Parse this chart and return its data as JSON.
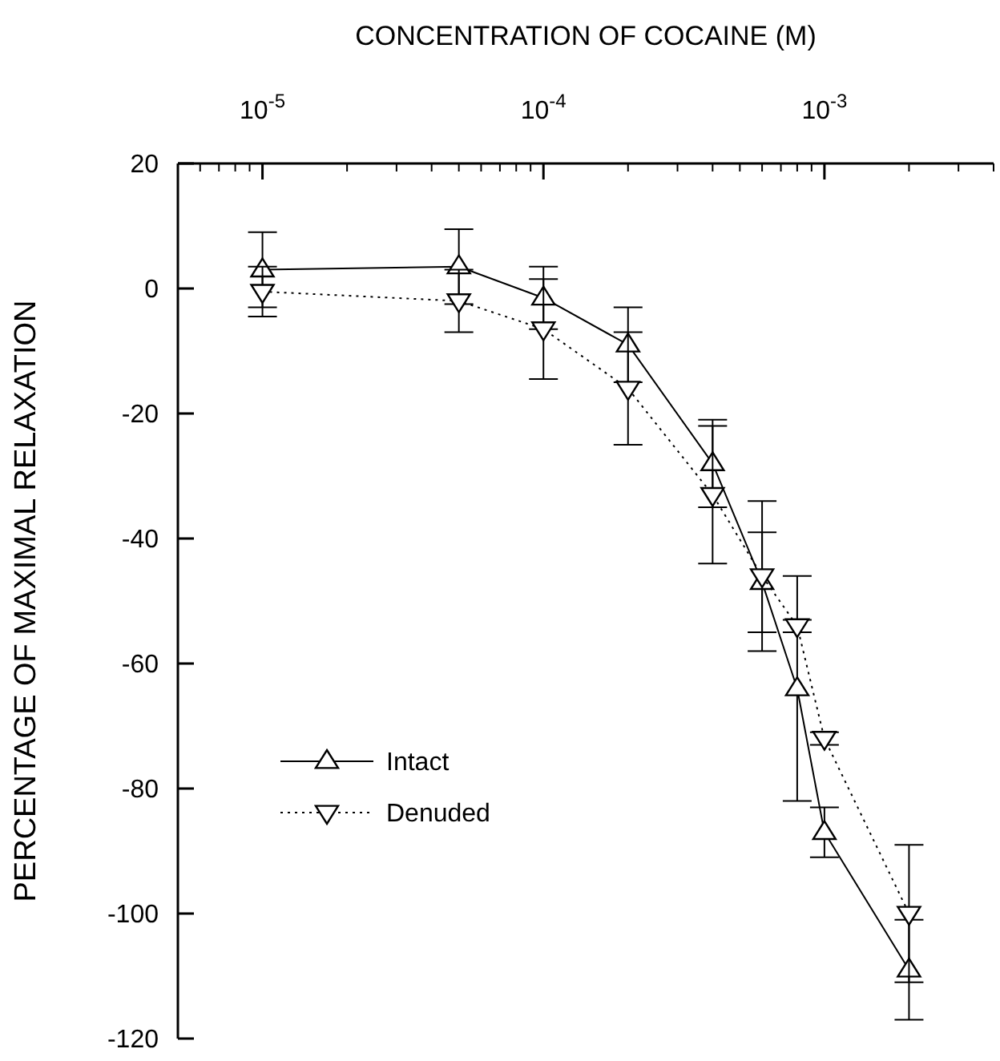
{
  "chart_data": {
    "type": "line",
    "xlabel": "CONCENTRATION OF COCAINE (M)",
    "ylabel": "PERCENTAGE OF MAXIMAL RELAXATION",
    "log": "x",
    "xlim": [
      5e-06,
      0.004
    ],
    "xticks": [
      {
        "value": 1e-05,
        "label": "10$^{-5}$"
      },
      {
        "value": 0.0001,
        "label": "10$^{-4}$"
      },
      {
        "value": 0.001,
        "label": "10$^{-3}$"
      }
    ],
    "ylim": [
      -120,
      20
    ],
    "yticks": [
      -120,
      -100,
      -80,
      -60,
      -40,
      -20,
      0,
      20
    ],
    "grid": false,
    "legend": "left",
    "x": [
      1e-05,
      5e-05,
      0.0001,
      0.0002,
      0.0004,
      0.0006,
      0.0008,
      0.001,
      0.002
    ],
    "series": [
      {
        "name": "Intact",
        "color": "#000000",
        "marker": "triangle",
        "line_style": "solid",
        "values": [
          3,
          3.5,
          -1.5,
          -9,
          -28,
          -47,
          -64,
          -87,
          -109
        ],
        "errors": [
          6,
          6,
          5,
          6,
          7,
          8,
          18,
          4,
          8
        ]
      },
      {
        "name": "Denuded",
        "color": "#000000",
        "marker": "triangle-down",
        "line_style": "dotted",
        "values": [
          -0.5,
          -2,
          -6.5,
          -16,
          -33,
          -46,
          -54,
          -72,
          -100
        ],
        "errors": [
          4,
          5,
          8,
          9,
          11,
          12,
          1,
          1,
          11
        ]
      }
    ]
  }
}
